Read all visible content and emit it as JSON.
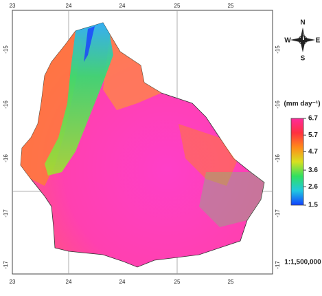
{
  "map": {
    "grid_labels": {
      "top": [
        "23",
        "24",
        "24",
        "25",
        "25"
      ],
      "bottom": [
        "23",
        "24",
        "24",
        "25",
        "25"
      ],
      "left": [
        "-15",
        "-16",
        "-16",
        "-17",
        "-17"
      ],
      "right": [
        "-15",
        "-16",
        "-16",
        "-17",
        "-17"
      ]
    },
    "compass": {
      "north": "N",
      "east": "E",
      "south": "S",
      "west": "W"
    },
    "legend": {
      "title": "(mm day⁻¹)",
      "ticks": [
        6.7,
        5.7,
        4.7,
        3.6,
        2.6,
        1.5
      ],
      "colors": [
        "#ff2a9a",
        "#ff3040",
        "#ff8a1a",
        "#d8e020",
        "#30e060",
        "#20c8e0",
        "#1040ff"
      ]
    },
    "scale": "1:1,500,000"
  }
}
